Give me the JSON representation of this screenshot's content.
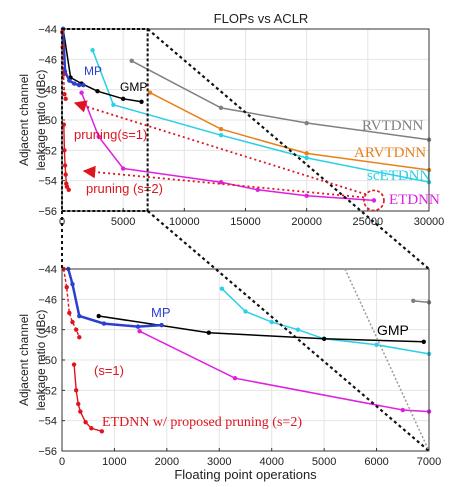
{
  "figure": {
    "title": "FLOPs vs ACLR"
  },
  "chart_data": [
    {
      "type": "line",
      "title": "FLOPs vs ACLR",
      "ylabel": "Adjacent channel leakage ratio (dBc)",
      "xlabel": "",
      "xlim": [
        0,
        30000
      ],
      "ylim": [
        -56,
        -44
      ],
      "x_ticks": [
        0,
        5000,
        10000,
        15000,
        20000,
        25000,
        30000
      ],
      "y_ticks": [
        -44,
        -46,
        -48,
        -50,
        -52,
        -54,
        -56
      ],
      "grid": true,
      "series": [
        {
          "name": "RVTDNN",
          "color": "#808080",
          "x": [
            5700,
            13000,
            20000,
            30000
          ],
          "y": [
            -46.1,
            -49.2,
            -50.2,
            -51.3
          ]
        },
        {
          "name": "ARVTDNN",
          "color": "#e8801a",
          "x": [
            7200,
            13000,
            20000,
            30000
          ],
          "y": [
            -48.2,
            -50.6,
            -52.2,
            -53.3
          ]
        },
        {
          "name": "scETDNN",
          "color": "#2ad0e8",
          "x": [
            2500,
            4200,
            13000,
            20000,
            30000
          ],
          "y": [
            -45.4,
            -49.0,
            -51.0,
            -52.5,
            -54.1
          ]
        },
        {
          "name": "GMP",
          "color": "#000000",
          "x": [
            100,
            700,
            1600,
            2900,
            5000,
            6500
          ],
          "y": [
            -44.0,
            -47.2,
            -47.6,
            -48.1,
            -48.6,
            -48.8
          ]
        },
        {
          "name": "MP",
          "color": "#2b3fd0",
          "x": [
            80,
            250,
            600,
            1000,
            1400,
            1750
          ],
          "y": [
            -44.0,
            -46.8,
            -47.4,
            -47.6,
            -47.7,
            -47.7
          ]
        },
        {
          "name": "ETDNN",
          "color": "#e020e0",
          "x": [
            1600,
            3000,
            5000,
            13000,
            16000,
            20000,
            25500
          ],
          "y": [
            -48.2,
            -51.1,
            -53.2,
            -54.1,
            -54.6,
            -55.0,
            -55.3
          ]
        },
        {
          "name": "pruning (s=1)",
          "color": "#e0141e",
          "x": [
            20,
            60,
            120,
            200,
            300
          ],
          "y": [
            -44.2,
            -45.2,
            -47.0,
            -48.3,
            -48.6
          ]
        },
        {
          "name": "pruning (s=2)",
          "color": "#e0141e",
          "x": [
            150,
            200,
            250,
            300,
            350,
            400,
            550
          ],
          "y": [
            -50.3,
            -52.0,
            -53.0,
            -53.6,
            -54.2,
            -54.4,
            -54.6
          ]
        }
      ],
      "annotations": [
        "MP",
        "GMP",
        "RVTDNN",
        "ARVTDNN",
        "scETDNN",
        "ETDNN",
        "pruning(s=1)",
        "pruning (s=2)"
      ]
    },
    {
      "type": "line",
      "title": "",
      "ylabel": "Adjacent channel leakage ratio (dBc)",
      "xlabel": "Floating point operations",
      "xlim": [
        0,
        7000
      ],
      "ylim": [
        -56,
        -44
      ],
      "x_ticks": [
        0,
        1000,
        2000,
        3000,
        4000,
        5000,
        6000,
        7000
      ],
      "y_ticks": [
        -44,
        -46,
        -48,
        -50,
        -52,
        -54,
        -56
      ],
      "grid": true,
      "series": [
        {
          "name": "RVTDNN",
          "color": "#808080",
          "x": [
            6700,
            7000
          ],
          "y": [
            -46.1,
            -46.2
          ]
        },
        {
          "name": "scETDNN",
          "color": "#2ad0e8",
          "x": [
            3050,
            3500,
            4000,
            4500,
            5000,
            6000,
            7000
          ],
          "y": [
            -45.3,
            -46.8,
            -47.5,
            -48.0,
            -48.6,
            -49.0,
            -49.6
          ]
        },
        {
          "name": "GMP",
          "color": "#000000",
          "x": [
            700,
            2800,
            5000,
            6900
          ],
          "y": [
            -47.1,
            -48.2,
            -48.6,
            -48.8
          ]
        },
        {
          "name": "MP",
          "color": "#2b3fd0",
          "x": [
            120,
            200,
            330,
            800,
            1450,
            1900
          ],
          "y": [
            -44.0,
            -45.0,
            -47.1,
            -47.6,
            -47.8,
            -47.7
          ]
        },
        {
          "name": "ETDNN",
          "color": "#e020e0",
          "x": [
            1480,
            3300,
            6500,
            7000
          ],
          "y": [
            -48.1,
            -51.2,
            -53.3,
            -53.4
          ]
        },
        {
          "name": "proposed pruning (s=1)",
          "color": "#e0141e",
          "x": [
            30,
            90,
            140,
            200,
            270,
            330
          ],
          "y": [
            -44.0,
            -45.2,
            -46.9,
            -47.5,
            -48.0,
            -48.5
          ]
        },
        {
          "name": "ETDNN w/ proposed pruning (s=2)",
          "color": "#e0141e",
          "x": [
            230,
            270,
            310,
            350,
            450,
            560,
            760
          ],
          "y": [
            -50.3,
            -52.0,
            -52.9,
            -53.4,
            -54.1,
            -54.5,
            -54.7
          ]
        }
      ],
      "annotations": [
        "MP",
        "GMP",
        "(s=1)",
        "ETDNN w/ proposed pruning (s=2)"
      ]
    }
  ]
}
